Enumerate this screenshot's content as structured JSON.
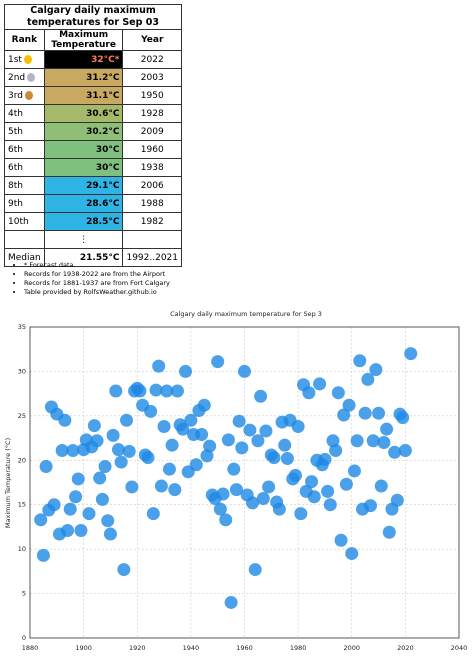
{
  "table": {
    "title": "Calgary daily maximum temperatures for Sep 03",
    "headers": [
      "Rank",
      "Maximum Temperature",
      "Year"
    ],
    "rows": [
      [
        "1st",
        "32°C*",
        "2022"
      ],
      [
        "2nd",
        "31.2°C",
        "2003"
      ],
      [
        "3rd",
        "31.1°C",
        "1950"
      ],
      [
        "4th",
        "30.6°C",
        "1928"
      ],
      [
        "5th",
        "30.2°C",
        "2009"
      ],
      [
        "6th",
        "30°C",
        "1960"
      ],
      [
        "6th",
        "30°C",
        "1938"
      ],
      [
        "8th",
        "29.1°C",
        "2006"
      ],
      [
        "9th",
        "28.6°C",
        "1988"
      ],
      [
        "10th",
        "28.5°C",
        "1982"
      ]
    ],
    "ellipsis": "⋮",
    "median": [
      "Median",
      "21.55°C",
      "1992..2021"
    ]
  },
  "notes": [
    "* Forecast data",
    "Records for 1938-2022 are from the Airport",
    "Records for 1881-1937 are from Fort Calgary",
    "Table provided by RolfsWeather.github.io"
  ],
  "chart_data": {
    "type": "scatter",
    "title": "Calgary daily maximum temperature for Sep 3",
    "y_label": "Maximum Temperature (°C)",
    "x": [
      1884,
      1885,
      1886,
      1887,
      1888,
      1889,
      1890,
      1891,
      1892,
      1893,
      1894,
      1895,
      1896,
      1897,
      1898,
      1899,
      1900,
      1901,
      1902,
      1903,
      1904,
      1905,
      1906,
      1907,
      1908,
      1909,
      1910,
      1911,
      1912,
      1913,
      1914,
      1915,
      1916,
      1917,
      1918,
      1919,
      1920,
      1921,
      1922,
      1923,
      1924,
      1925,
      1926,
      1927,
      1928,
      1929,
      1930,
      1931,
      1932,
      1933,
      1934,
      1935,
      1936,
      1937,
      1938,
      1939,
      1940,
      1941,
      1942,
      1943,
      1944,
      1945,
      1946,
      1947,
      1948,
      1949,
      1950,
      1951,
      1952,
      1953,
      1954,
      1955,
      1956,
      1957,
      1958,
      1959,
      1960,
      1961,
      1962,
      1963,
      1964,
      1965,
      1966,
      1967,
      1968,
      1969,
      1970,
      1971,
      1972,
      1973,
      1974,
      1975,
      1976,
      1977,
      1978,
      1979,
      1980,
      1981,
      1982,
      1983,
      1984,
      1985,
      1986,
      1987,
      1988,
      1989,
      1990,
      1991,
      1992,
      1993,
      1994,
      1995,
      1996,
      1997,
      1998,
      1999,
      2000,
      2001,
      2002,
      2003,
      2004,
      2005,
      2006,
      2007,
      2008,
      2009,
      2010,
      2011,
      2012,
      2013,
      2014,
      2015,
      2016,
      2017,
      2018,
      2019,
      2020,
      2022
    ],
    "values": [
      13.3,
      9.3,
      19.3,
      14.4,
      26.0,
      15.0,
      25.2,
      11.7,
      21.1,
      24.5,
      12.1,
      14.5,
      21.1,
      15.9,
      17.9,
      12.1,
      21.2,
      22.3,
      14.0,
      21.5,
      23.9,
      22.2,
      18.0,
      15.6,
      19.3,
      13.2,
      11.7,
      22.8,
      27.8,
      21.2,
      19.8,
      7.7,
      24.5,
      21.0,
      17.0,
      27.8,
      28.1,
      27.8,
      26.2,
      20.6,
      20.3,
      25.5,
      14.0,
      27.9,
      30.6,
      17.1,
      23.8,
      27.8,
      19.0,
      21.7,
      16.7,
      27.8,
      24.0,
      23.5,
      30.0,
      18.7,
      24.5,
      22.9,
      19.5,
      25.6,
      22.9,
      26.2,
      20.5,
      21.6,
      16.1,
      15.7,
      31.1,
      14.5,
      16.2,
      13.3,
      22.3,
      4.0,
      19.0,
      16.7,
      24.4,
      21.4,
      30.0,
      16.1,
      23.4,
      15.2,
      7.7,
      22.2,
      27.2,
      15.7,
      23.3,
      17.0,
      20.6,
      20.3,
      15.3,
      14.5,
      24.3,
      21.7,
      20.2,
      24.5,
      17.9,
      18.3,
      23.8,
      14.0,
      28.5,
      16.5,
      27.6,
      17.6,
      15.9,
      20.0,
      28.6,
      19.5,
      20.1,
      16.5,
      15.0,
      22.2,
      21.1,
      27.6,
      11.0,
      25.1,
      17.3,
      26.2,
      9.5,
      18.8,
      22.2,
      31.2,
      14.5,
      25.3,
      29.1,
      14.9,
      22.2,
      30.2,
      25.3,
      17.1,
      22.0,
      23.5,
      11.9,
      14.5,
      20.9,
      15.5,
      25.2,
      24.8,
      21.1,
      32.0
    ],
    "color": "#1e88e5",
    "xlim": [
      1880,
      2040
    ],
    "ylim": [
      0,
      35
    ],
    "xticks": [
      1880,
      1900,
      1920,
      1940,
      1960,
      1980,
      2000,
      2020,
      2040
    ],
    "yticks": [
      0,
      5,
      10,
      15,
      20,
      25,
      30,
      35
    ],
    "grid": true
  }
}
